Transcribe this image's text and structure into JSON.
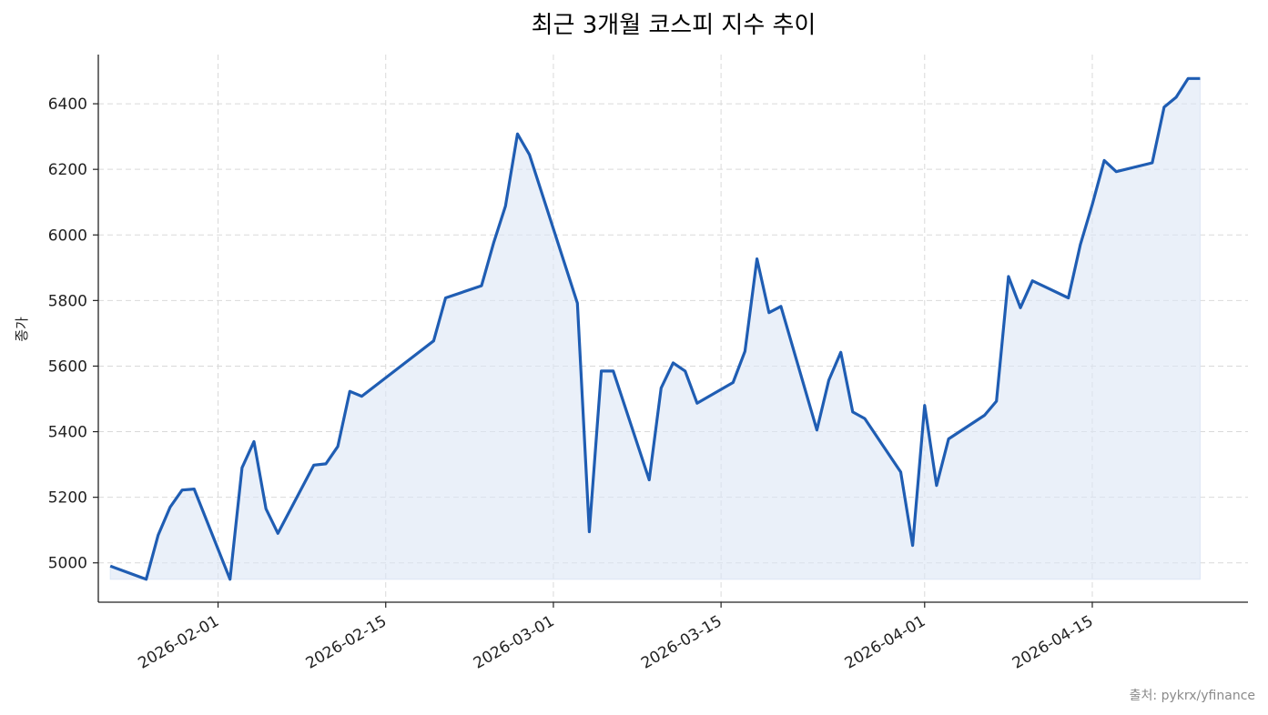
{
  "chart_data": {
    "type": "area",
    "title": "최근 3개월 코스피 지수 추이",
    "xlabel": "",
    "ylabel": "종가",
    "source": "출처: pykrx/yfinance",
    "grid": true,
    "legend": "none",
    "colors": {
      "line": "#1f5db3",
      "fill": "#dce6f5",
      "grid": "#d9d9d9",
      "axis": "#222222"
    },
    "xlim": [
      "2026-01-22",
      "2026-04-28"
    ],
    "ylim": [
      4880,
      6550
    ],
    "x_ticks": [
      "2026-02-01",
      "2026-02-15",
      "2026-03-01",
      "2026-03-15",
      "2026-04-01",
      "2026-04-15"
    ],
    "y_ticks": [
      5000,
      5200,
      5400,
      5600,
      5800,
      6000,
      6200,
      6400
    ],
    "fill_baseline": 4950,
    "series": [
      {
        "x": [
          "2026-01-23",
          "2026-01-26",
          "2026-01-27",
          "2026-01-28",
          "2026-01-29",
          "2026-01-30",
          "2026-02-02",
          "2026-02-03",
          "2026-02-04",
          "2026-02-05",
          "2026-02-06",
          "2026-02-09",
          "2026-02-10",
          "2026-02-11",
          "2026-02-12",
          "2026-02-13",
          "2026-02-19",
          "2026-02-20",
          "2026-02-23",
          "2026-02-24",
          "2026-02-25",
          "2026-02-26",
          "2026-02-27",
          "2026-03-03",
          "2026-03-04",
          "2026-03-05",
          "2026-03-06",
          "2026-03-09",
          "2026-03-10",
          "2026-03-11",
          "2026-03-12",
          "2026-03-13",
          "2026-03-16",
          "2026-03-17",
          "2026-03-18",
          "2026-03-19",
          "2026-03-20",
          "2026-03-23",
          "2026-03-24",
          "2026-03-25",
          "2026-03-26",
          "2026-03-27",
          "2026-03-30",
          "2026-03-31",
          "2026-04-01",
          "2026-04-02",
          "2026-04-03",
          "2026-04-06",
          "2026-04-07",
          "2026-04-08",
          "2026-04-09",
          "2026-04-10",
          "2026-04-13",
          "2026-04-14",
          "2026-04-15",
          "2026-04-16",
          "2026-04-17",
          "2026-04-20",
          "2026-04-21",
          "2026-04-22",
          "2026-04-23",
          "2026-04-24"
        ],
        "values": [
          4990,
          4950,
          5085,
          5170,
          5222,
          5225,
          4950,
          5290,
          5370,
          5165,
          5090,
          5298,
          5302,
          5355,
          5523,
          5508,
          5677,
          5808,
          5845,
          5975,
          6088,
          6308,
          6245,
          5792,
          5095,
          5585,
          5585,
          5253,
          5533,
          5610,
          5585,
          5487,
          5550,
          5645,
          5927,
          5763,
          5782,
          5405,
          5557,
          5642,
          5460,
          5440,
          5277,
          5053,
          5480,
          5236,
          5378,
          5450,
          5493,
          5873,
          5778,
          5860,
          5808,
          5970,
          6093,
          6227,
          6193,
          6220,
          6390,
          6420,
          6477,
          6477
        ]
      }
    ]
  }
}
